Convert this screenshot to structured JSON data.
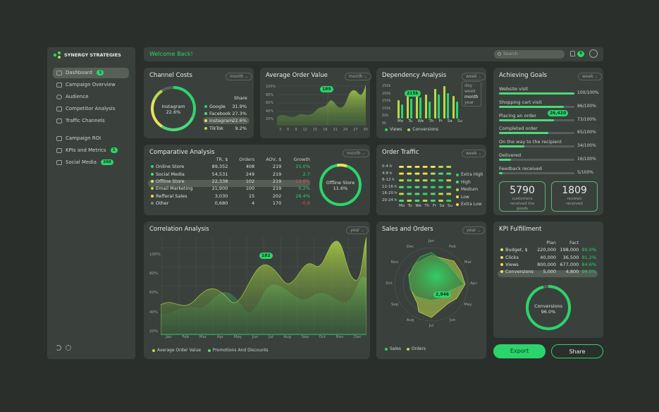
{
  "brand": "SYNERGY STRATEGIES",
  "header": {
    "welcome": "Welcome Back!",
    "search_placeholder": "Search",
    "notif_count": "9"
  },
  "sidebar": {
    "items": [
      {
        "label": "Dashboard",
        "badge": "1"
      },
      {
        "label": "Campaign Overview"
      },
      {
        "label": "Audience"
      },
      {
        "label": "Competitor Analysis"
      },
      {
        "label": "Traffic Channels"
      },
      {
        "label": "Campaign ROI"
      },
      {
        "label": "KPIs and Metrics",
        "badge": "1"
      },
      {
        "label": "Social Media",
        "badge": "260"
      }
    ]
  },
  "channel_costs": {
    "title": "Channel Costs",
    "period": "month",
    "center_label": "Instagram",
    "center_value": "22.6%",
    "share_header": "Share",
    "rows": [
      {
        "name": "Google",
        "value": "31.9%",
        "color": "#2bd46a"
      },
      {
        "name": "Facebook",
        "value": "27.3%",
        "color": "#4cd97a"
      },
      {
        "name": "Instagram",
        "value": "22.6%",
        "color": "#e8e25a"
      },
      {
        "name": "TikTok",
        "value": "9.2%",
        "color": "#b7d94a"
      }
    ]
  },
  "aov": {
    "title": "Average Order Value",
    "period": "month",
    "tip": "189",
    "y_ticks": [
      "100%",
      "80%",
      "60%",
      "40%",
      "20%"
    ],
    "x_ticks": [
      "3",
      "6",
      "9",
      "12",
      "15",
      "18",
      "21",
      "24",
      "27",
      "30"
    ]
  },
  "dependency": {
    "title": "Dependency Analysis",
    "period": "week",
    "tip": "215k",
    "menu": [
      "day",
      "week",
      "month",
      "year"
    ],
    "y_ticks": [
      "250k",
      "200k",
      "150k",
      "100k",
      "50k",
      "0k"
    ],
    "days": [
      "Mo",
      "Tu",
      "We",
      "Th",
      "Fr",
      "Sa",
      "Su"
    ],
    "legend": [
      "Views",
      "Conversions"
    ]
  },
  "goals": {
    "title": "Achieving Goals",
    "period": "week",
    "tip": "26,420",
    "items": [
      {
        "label": "Website visit",
        "value": "100/100%",
        "pct": 1.0
      },
      {
        "label": "Shopping cart visit",
        "value": "86/100%",
        "pct": 0.86
      },
      {
        "label": "Placing an order",
        "value": "73/100%",
        "pct": 0.73
      },
      {
        "label": "Completed order",
        "value": "65/100%",
        "pct": 0.65
      },
      {
        "label": "On the way to the recipient",
        "value": "34/100%",
        "pct": 0.34
      },
      {
        "label": "Delivered",
        "value": "16/100%",
        "pct": 0.16
      },
      {
        "label": "Feedback received",
        "value": "5/100%",
        "pct": 0.05
      }
    ],
    "stat1_value": "5790",
    "stat1_label": "customers received the goods",
    "stat2_value": "1809",
    "stat2_label": "reviews received"
  },
  "comparative": {
    "title": "Comparative Analysis",
    "period": "month",
    "headers": [
      "TR, $",
      "Orders",
      "AOV, $",
      "Growth"
    ],
    "rows": [
      {
        "name": "Online Store",
        "tr": "89,352",
        "orders": "408",
        "aov": "219",
        "growth": "15.0%",
        "sign": "g"
      },
      {
        "name": "Social Media",
        "tr": "54,531",
        "orders": "249",
        "aov": "219",
        "growth": "2.7",
        "sign": "g"
      },
      {
        "name": "Offline Store",
        "tr": "22,338",
        "orders": "102",
        "aov": "219",
        "growth": "-13.6%",
        "sign": "r"
      },
      {
        "name": "Email Marketing",
        "tr": "21,900",
        "orders": "100",
        "aov": "219",
        "growth": "0.2%",
        "sign": "g"
      },
      {
        "name": "Refferal Sales",
        "tr": "3,030",
        "orders": "15",
        "aov": "202",
        "growth": "26.4%",
        "sign": "g"
      },
      {
        "name": "Other",
        "tr": "0,680",
        "orders": "4",
        "aov": "170",
        "growth": "-0.8",
        "sign": "r"
      }
    ],
    "donut_label": "Offline Store",
    "donut_value": "11.6%"
  },
  "order_traffic": {
    "title": "Order Traffic",
    "period": "week",
    "rows": [
      "0-4 h",
      "4-8 h",
      "8-12 h",
      "12-16 h",
      "16-20 h",
      "20-24 h"
    ],
    "days": [
      "Mo",
      "Tu",
      "We",
      "Th",
      "Fr",
      "Sa",
      "Su"
    ],
    "legend": [
      "Extra High",
      "High",
      "Medium",
      "Low",
      "Extra Low"
    ]
  },
  "correlation": {
    "title": "Correlation Analysis",
    "period": "year",
    "tip": "182",
    "y_ticks": [
      "100%",
      "80%",
      "60%",
      "40%",
      "20%"
    ],
    "months": [
      "Jan",
      "Feb",
      "Mar",
      "Apr",
      "May",
      "Jun",
      "Jul",
      "Aug",
      "Sep",
      "Oct",
      "Nov",
      "Dec"
    ],
    "legend": [
      "Average Order Value",
      "Promotions And Discounts"
    ]
  },
  "sales_orders": {
    "title": "Sales and Orders",
    "period": "year",
    "tip": "2,846",
    "months": [
      "Jan",
      "Feb",
      "Mar",
      "Apr",
      "May",
      "Jun",
      "Jul",
      "Aug",
      "Sep",
      "Oct",
      "Nov",
      "Dec"
    ],
    "legend": [
      "Sales",
      "Orders"
    ]
  },
  "kpi": {
    "title": "KPI Fulfillment",
    "headers": [
      "Plan",
      "Fact"
    ],
    "rows": [
      {
        "name": "Budget, $",
        "plan": "220,000",
        "fact": "198,000",
        "pct": "90.0%"
      },
      {
        "name": "Clicks",
        "plan": "40,000",
        "fact": "36,500",
        "pct": "91.2%"
      },
      {
        "name": "Views",
        "plan": "800,000",
        "fact": "677,000",
        "pct": "84.6%"
      },
      {
        "name": "Conversions",
        "plan": "5,000",
        "fact": "4,800",
        "pct": "96.0%"
      }
    ],
    "donut_label": "Conversions",
    "donut_value": "96.0%"
  },
  "actions": {
    "export": "Export",
    "share": "Share"
  }
}
